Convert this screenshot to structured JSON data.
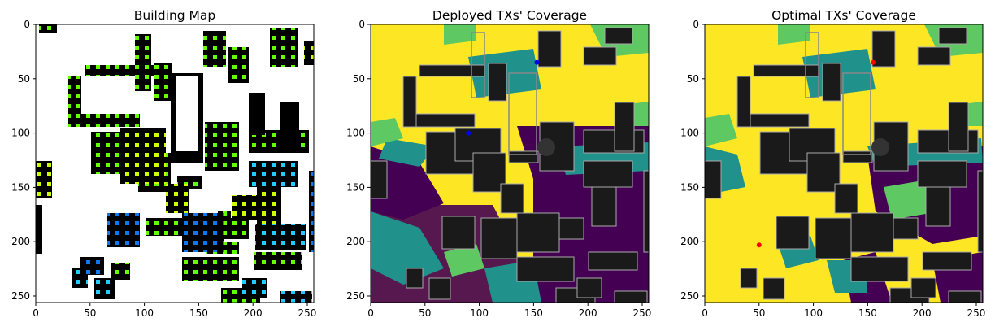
{
  "chart_data": [
    {
      "type": "heatmap",
      "title": "Building Map",
      "xlim": [
        0,
        256
      ],
      "ylim": [
        256,
        0
      ],
      "x_ticks": [
        0,
        50,
        100,
        150,
        200,
        250
      ],
      "y_ticks": [
        0,
        50,
        100,
        150,
        200,
        250
      ],
      "grid": false,
      "colors": {
        "building": "#000000",
        "free": "#ffffff",
        "marker_green": "#66ff00",
        "marker_lime": "#ccff00",
        "marker_cyan": "#22ccff",
        "marker_blue": "#1177ee"
      }
    },
    {
      "type": "heatmap",
      "title": "Deployed TXs' Coverage",
      "xlim": [
        0,
        256
      ],
      "ylim": [
        256,
        0
      ],
      "x_ticks": [
        0,
        50,
        100,
        150,
        200,
        250
      ],
      "y_ticks": [
        0,
        50,
        100,
        150,
        200,
        250
      ],
      "grid": false,
      "transmitters": [
        {
          "x": 153,
          "y": 35
        },
        {
          "x": 90,
          "y": 100
        }
      ],
      "tx_color": "#0000ff",
      "colors": {
        "high": "#fde725",
        "mid_high": "#5ec962",
        "mid": "#21918c",
        "low": "#440154",
        "building": "#1a1a1a"
      }
    },
    {
      "type": "heatmap",
      "title": "Optimal TXs' Coverage",
      "xlim": [
        0,
        256
      ],
      "ylim": [
        256,
        0
      ],
      "x_ticks": [
        0,
        50,
        100,
        150,
        200,
        250
      ],
      "y_ticks": [
        0,
        50,
        100,
        150,
        200,
        250
      ],
      "grid": false,
      "transmitters": [
        {
          "x": 155,
          "y": 35
        },
        {
          "x": 50,
          "y": 203
        }
      ],
      "tx_color": "#ff0000",
      "colors": {
        "high": "#fde725",
        "mid_high": "#5ec962",
        "mid": "#21918c",
        "low": "#440154",
        "building": "#1a1a1a"
      }
    }
  ]
}
